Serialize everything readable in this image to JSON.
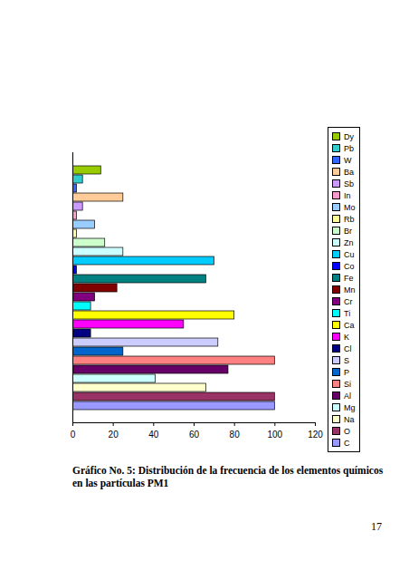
{
  "chart_data": {
    "type": "bar",
    "orientation": "horizontal",
    "title": "Gráfico No. 5: Distribución de la frecuencia de los elementos químicos en las partículas PM1",
    "annotations": [
      "17"
    ],
    "categories": [
      "C",
      "O",
      "Na",
      "Mg",
      "Al",
      "Si",
      "P",
      "S",
      "Cl",
      "K",
      "Ca",
      "Ti",
      "Cr",
      "Mn",
      "Fe",
      "Co",
      "Cu",
      "Zn",
      "Br",
      "Rb",
      "Mo",
      "In",
      "Sb",
      "Ba",
      "W",
      "Pb",
      "Dy"
    ],
    "values": [
      100,
      100,
      66,
      41,
      77,
      100,
      25,
      72,
      9,
      55,
      80,
      9,
      11,
      22,
      66,
      2,
      70,
      25,
      16,
      2,
      11,
      2,
      5,
      25,
      2,
      5,
      14
    ],
    "colors": [
      "#9999FF",
      "#993366",
      "#FFFFCC",
      "#CCFFFF",
      "#660066",
      "#FF8080",
      "#0066CC",
      "#CCCCFF",
      "#000080",
      "#FF00FF",
      "#FFFF00",
      "#00FFFF",
      "#800080",
      "#800000",
      "#008080",
      "#0000FF",
      "#00CCFF",
      "#CCFFFF",
      "#CCFFCC",
      "#FFFF99",
      "#99CCFF",
      "#FF99CC",
      "#CC99FF",
      "#FFCC99",
      "#3366FF",
      "#33CCCC",
      "#99CC00"
    ],
    "xlim": [
      0,
      120
    ],
    "xticks": [
      0,
      20,
      40,
      60,
      80,
      100,
      120
    ],
    "legend": "right",
    "tick_labels": "x",
    "grid": false
  }
}
